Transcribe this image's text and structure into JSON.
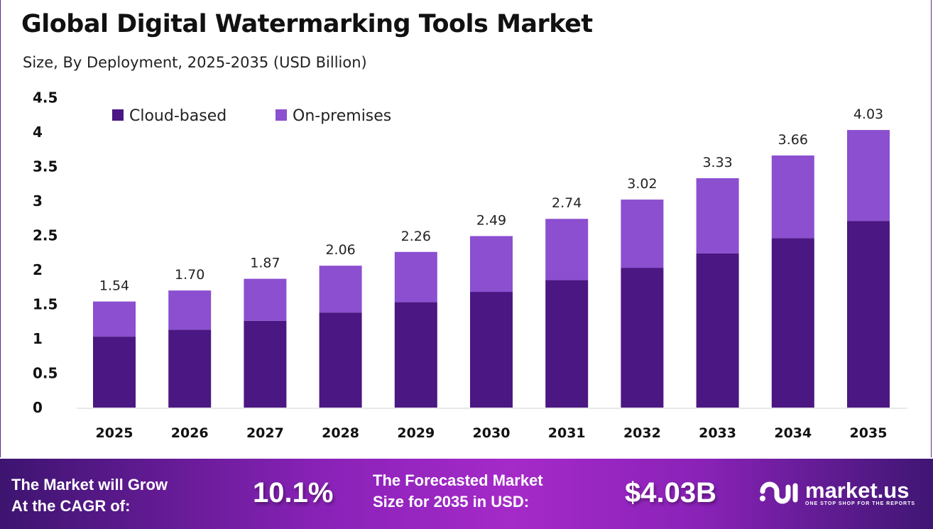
{
  "title": "Global Digital Watermarking Tools Market",
  "subtitle": "Size, By Deployment, 2025-2035 (USD Billion)",
  "chart_data": {
    "type": "bar",
    "stacked": true,
    "categories": [
      "2025",
      "2026",
      "2027",
      "2028",
      "2029",
      "2030",
      "2031",
      "2032",
      "2033",
      "2034",
      "2035"
    ],
    "series": [
      {
        "name": "Cloud-based",
        "color": "#4b1782",
        "values": [
          1.03,
          1.13,
          1.26,
          1.38,
          1.53,
          1.68,
          1.85,
          2.03,
          2.24,
          2.46,
          2.71
        ]
      },
      {
        "name": "On-premises",
        "color": "#8b4fd0",
        "values": [
          0.51,
          0.57,
          0.61,
          0.68,
          0.73,
          0.81,
          0.89,
          0.99,
          1.09,
          1.2,
          1.32
        ]
      }
    ],
    "totals": [
      "1.54",
      "1.70",
      "1.87",
      "2.06",
      "2.26",
      "2.49",
      "2.74",
      "3.02",
      "3.33",
      "3.66",
      "4.03"
    ],
    "yticks": [
      "0",
      "0.5",
      "1",
      "1.5",
      "2",
      "2.5",
      "3",
      "3.5",
      "4",
      "4.5"
    ],
    "ylim": [
      0,
      4.5
    ],
    "grid": false,
    "legend": "top-left"
  },
  "footer": {
    "cagr_label_1": "The Market will Grow",
    "cagr_label_2": "At the CAGR of:",
    "cagr_value": "10.1%",
    "forecast_label_1": "The Forecasted Market",
    "forecast_label_2": "Size for 2035 in USD:",
    "forecast_value": "$4.03B",
    "logo_name": "market.us",
    "logo_tagline": "ONE STOP SHOP FOR THE REPORTS"
  }
}
